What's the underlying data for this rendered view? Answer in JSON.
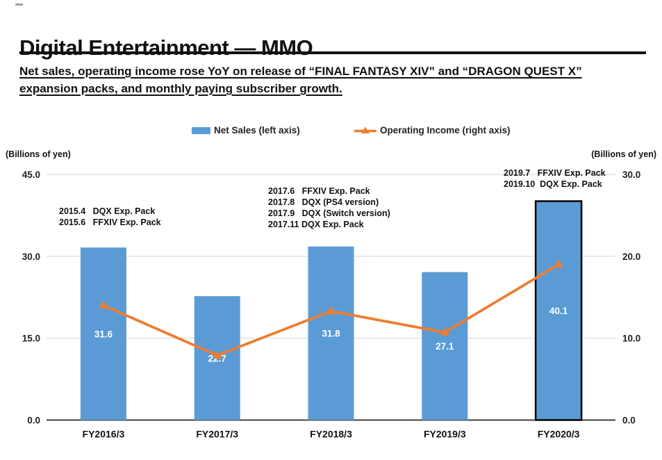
{
  "header": {
    "title": "Digital Entertainment — MMO",
    "subtitle_line1": "Net sales, operating income rose YoY on release of “FINAL FANTASY XIV” and “DRAGON QUEST X”",
    "subtitle_line2": "expansion packs, and monthly paying subscriber growth."
  },
  "legend": {
    "net_sales": "Net Sales (left axis)",
    "operating_income": "Operating Income (right axis)"
  },
  "colors": {
    "bar": "#5B9BD5",
    "line": "#ED7D31",
    "highlight_border": "#000000",
    "grid": "#D9D9D9",
    "axis": "#404040"
  },
  "chart_data": {
    "type": "bar",
    "subtype": "bar+line combo, dual axis",
    "categories": [
      "FY2016/3",
      "FY2017/3",
      "FY2018/3",
      "FY2019/3",
      "FY2020/3"
    ],
    "series": [
      {
        "name": "Net Sales (left axis)",
        "type": "bar",
        "axis": "left",
        "values": [
          31.6,
          22.7,
          31.8,
          27.1,
          40.1
        ],
        "labels": [
          "31.6",
          "22.7",
          "31.8",
          "27.1",
          "40.1"
        ],
        "highlight_index": 4
      },
      {
        "name": "Operating Income (right axis)",
        "type": "line",
        "axis": "right",
        "values": [
          14.0,
          7.9,
          13.3,
          10.7,
          19.0
        ],
        "note": "values estimated from gridlines; no data labels shown"
      }
    ],
    "left_axis": {
      "title": "(Billions of yen)",
      "min": 0,
      "max": 45,
      "ticks": [
        "45.0",
        "30.0",
        "15.0",
        "0.0"
      ]
    },
    "right_axis": {
      "title": "(Billions of yen)",
      "min": 0,
      "max": 30,
      "ticks": [
        "30.0",
        "20.0",
        "10.0",
        "0.0"
      ]
    },
    "grid": "horizontal only",
    "legend_position": "top center",
    "annotations": [
      {
        "lines": [
          "2015.4   DQX Exp. Pack",
          "2015.6   FFXIV Exp. Pack"
        ]
      },
      {
        "lines": [
          "2017.6   FFXIV Exp. Pack",
          "2017.8   DQX (PS4 version)",
          "2017.9   DQX (Switch version)",
          "2017.11 DQX Exp. Pack"
        ]
      },
      {
        "lines": [
          "2019.7   FFXIV Exp. Pack",
          "2019.10  DQX Exp. Pack"
        ]
      }
    ]
  }
}
